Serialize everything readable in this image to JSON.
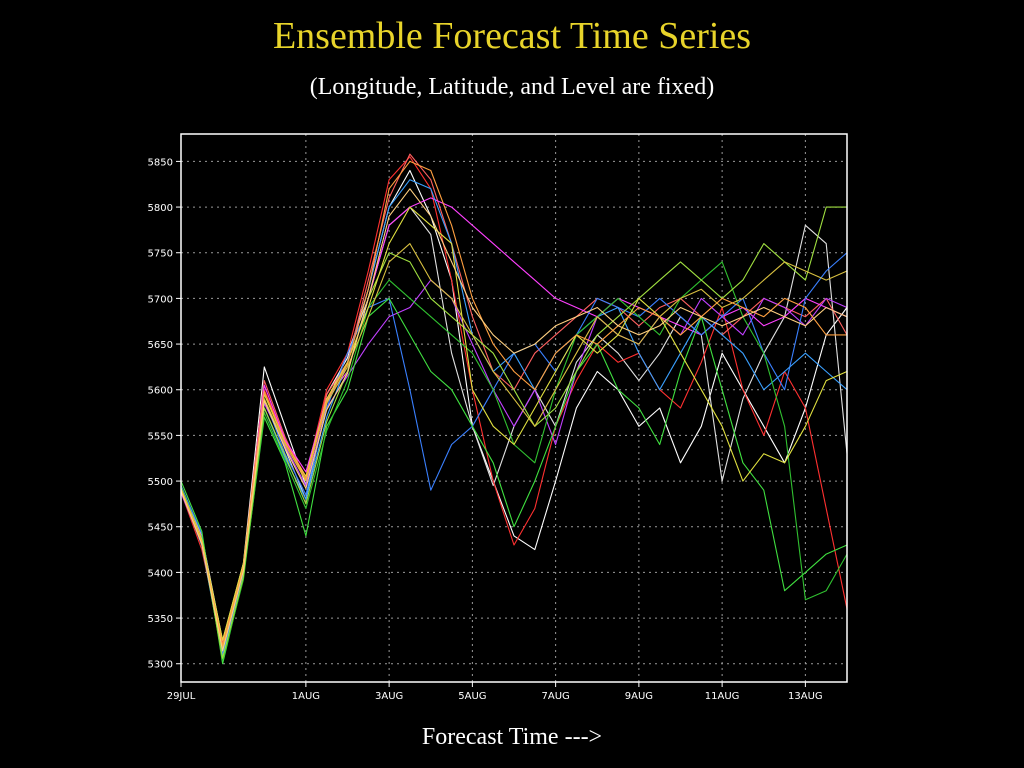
{
  "title": "Ensemble Forecast Time Series",
  "subtitle": "(Longitude, Latitude, and Level are fixed)",
  "xlabel": "Forecast Time --->",
  "colors": {
    "background": "#000000",
    "title": "#e8d42a",
    "axis": "#ffffff",
    "grid": "#9a9a9a"
  },
  "chart_data": {
    "type": "line",
    "title": "Ensemble Forecast Time Series",
    "subtitle": "(Longitude, Latitude, and Level are fixed)",
    "xlabel": "Forecast Time --->",
    "ylabel": "",
    "x_unit": "days",
    "xlim": [
      0,
      16
    ],
    "ylim": [
      5280,
      5880
    ],
    "grid": true,
    "legend": "none",
    "x_ticks": [
      {
        "x": 0,
        "label": "29JUL"
      },
      {
        "x": 3,
        "label": "1AUG"
      },
      {
        "x": 5,
        "label": "3AUG"
      },
      {
        "x": 7,
        "label": "5AUG"
      },
      {
        "x": 9,
        "label": "7AUG"
      },
      {
        "x": 11,
        "label": "9AUG"
      },
      {
        "x": 13,
        "label": "11AUG"
      },
      {
        "x": 15,
        "label": "13AUG"
      }
    ],
    "y_ticks": [
      5300,
      5350,
      5400,
      5450,
      5500,
      5550,
      5600,
      5650,
      5700,
      5750,
      5800,
      5850
    ],
    "x": [
      0,
      0.5,
      1,
      1.5,
      2,
      2.5,
      3,
      3.5,
      4,
      4.5,
      5,
      5.5,
      6,
      6.5,
      7,
      7.5,
      8,
      8.5,
      9,
      9.5,
      10,
      10.5,
      11,
      11.5,
      12,
      12.5,
      13,
      13.5,
      14,
      14.5,
      15,
      15.5,
      16
    ],
    "series": [
      {
        "color": "#ffffff",
        "values": [
          5495,
          5440,
          5325,
          5410,
          5625,
          5560,
          5495,
          5595,
          5635,
          5710,
          5800,
          5840,
          5790,
          5720,
          5560,
          5500,
          5440,
          5425,
          5500,
          5580,
          5620,
          5600,
          5560,
          5580,
          5520,
          5560,
          5640,
          5600,
          5560,
          5520,
          5580,
          5660,
          5690
        ]
      },
      {
        "color": "#e0e0e0",
        "values": [
          5490,
          5430,
          5315,
          5400,
          5590,
          5535,
          5480,
          5585,
          5640,
          5700,
          5780,
          5800,
          5770,
          5640,
          5560,
          5495,
          5560,
          5600,
          5560,
          5630,
          5660,
          5640,
          5610,
          5640,
          5680,
          5660,
          5500,
          5590,
          5640,
          5680,
          5780,
          5760,
          5530
        ]
      },
      {
        "color": "#ff3030",
        "values": [
          5488,
          5425,
          5320,
          5405,
          5600,
          5545,
          5505,
          5600,
          5640,
          5730,
          5830,
          5855,
          5820,
          5720,
          5600,
          5500,
          5430,
          5470,
          5560,
          5610,
          5650,
          5630,
          5640,
          5600,
          5580,
          5630,
          5690,
          5600,
          5550,
          5620,
          5580,
          5470,
          5360
        ]
      },
      {
        "color": "#ff6060",
        "values": [
          5492,
          5438,
          5322,
          5408,
          5610,
          5548,
          5500,
          5595,
          5630,
          5720,
          5810,
          5858,
          5830,
          5760,
          5680,
          5620,
          5600,
          5640,
          5660,
          5680,
          5700,
          5690,
          5670,
          5690,
          5700,
          5680,
          5660,
          5680,
          5700,
          5690,
          5680,
          5700,
          5660
        ]
      },
      {
        "color": "#ff40ff",
        "values": [
          5490,
          5435,
          5310,
          5402,
          5605,
          5545,
          5510,
          5590,
          5620,
          5700,
          5780,
          5800,
          5810,
          5800,
          5780,
          5760,
          5740,
          5720,
          5700,
          5690,
          5680,
          5700,
          5690,
          5680,
          5670,
          5660,
          5680,
          5690,
          5670,
          5680,
          5700,
          5690,
          5680
        ]
      },
      {
        "color": "#c040ff",
        "values": [
          5487,
          5432,
          5318,
          5400,
          5585,
          5538,
          5495,
          5580,
          5615,
          5650,
          5680,
          5690,
          5720,
          5700,
          5650,
          5600,
          5560,
          5600,
          5540,
          5620,
          5680,
          5660,
          5650,
          5680,
          5660,
          5700,
          5680,
          5660,
          5700,
          5690,
          5670,
          5700,
          5690
        ]
      },
      {
        "color": "#3a80ff",
        "values": [
          5495,
          5442,
          5312,
          5398,
          5590,
          5530,
          5485,
          5580,
          5640,
          5690,
          5700,
          5600,
          5490,
          5540,
          5560,
          5600,
          5640,
          5650,
          5620,
          5660,
          5700,
          5690,
          5680,
          5700,
          5680,
          5660,
          5680,
          5700,
          5640,
          5600,
          5700,
          5730,
          5750
        ]
      },
      {
        "color": "#3aa0ff",
        "values": [
          5490,
          5430,
          5308,
          5395,
          5580,
          5525,
          5480,
          5570,
          5630,
          5710,
          5800,
          5830,
          5820,
          5760,
          5660,
          5620,
          5640,
          5600,
          5640,
          5660,
          5680,
          5690,
          5640,
          5600,
          5640,
          5680,
          5660,
          5640,
          5600,
          5620,
          5640,
          5620,
          5600
        ]
      },
      {
        "color": "#40e040",
        "values": [
          5500,
          5445,
          5300,
          5395,
          5570,
          5520,
          5440,
          5560,
          5600,
          5680,
          5700,
          5660,
          5620,
          5600,
          5560,
          5520,
          5450,
          5500,
          5560,
          5620,
          5650,
          5600,
          5580,
          5540,
          5620,
          5680,
          5600,
          5520,
          5490,
          5380,
          5400,
          5420,
          5430
        ]
      },
      {
        "color": "#30c030",
        "values": [
          5494,
          5436,
          5304,
          5392,
          5575,
          5522,
          5470,
          5555,
          5610,
          5690,
          5720,
          5700,
          5680,
          5660,
          5640,
          5600,
          5540,
          5520,
          5600,
          5660,
          5680,
          5700,
          5680,
          5660,
          5700,
          5720,
          5740,
          5680,
          5640,
          5560,
          5370,
          5380,
          5420
        ]
      },
      {
        "color": "#a0e040",
        "values": [
          5490,
          5434,
          5306,
          5396,
          5580,
          5528,
          5475,
          5565,
          5620,
          5700,
          5750,
          5740,
          5700,
          5680,
          5660,
          5640,
          5600,
          5560,
          5580,
          5620,
          5660,
          5680,
          5700,
          5720,
          5740,
          5720,
          5700,
          5720,
          5760,
          5740,
          5720,
          5800,
          5800
        ]
      },
      {
        "color": "#e0e040",
        "values": [
          5492,
          5436,
          5326,
          5410,
          5595,
          5542,
          5505,
          5590,
          5630,
          5690,
          5760,
          5800,
          5780,
          5760,
          5600,
          5560,
          5540,
          5580,
          5620,
          5660,
          5640,
          5660,
          5700,
          5680,
          5640,
          5600,
          5560,
          5500,
          5530,
          5520,
          5560,
          5610,
          5620
        ]
      },
      {
        "color": "#d8c040",
        "values": [
          5490,
          5432,
          5316,
          5404,
          5590,
          5540,
          5500,
          5585,
          5625,
          5680,
          5740,
          5760,
          5720,
          5700,
          5660,
          5620,
          5590,
          5560,
          5600,
          5640,
          5680,
          5660,
          5650,
          5680,
          5700,
          5710,
          5690,
          5700,
          5720,
          5740,
          5730,
          5720,
          5730
        ]
      },
      {
        "color": "#ffa040",
        "values": [
          5491,
          5433,
          5320,
          5406,
          5598,
          5543,
          5502,
          5588,
          5628,
          5710,
          5820,
          5850,
          5840,
          5780,
          5700,
          5650,
          5620,
          5600,
          5640,
          5660,
          5650,
          5670,
          5690,
          5680,
          5660,
          5680,
          5700,
          5690,
          5680,
          5700,
          5690,
          5660,
          5660
        ]
      },
      {
        "color": "#ffd080",
        "values": [
          5489,
          5431,
          5314,
          5402,
          5588,
          5536,
          5492,
          5578,
          5618,
          5700,
          5790,
          5820,
          5790,
          5740,
          5690,
          5660,
          5640,
          5650,
          5670,
          5680,
          5690,
          5670,
          5660,
          5670,
          5690,
          5680,
          5670,
          5680,
          5690,
          5680,
          5670,
          5690,
          5680
        ]
      }
    ]
  }
}
